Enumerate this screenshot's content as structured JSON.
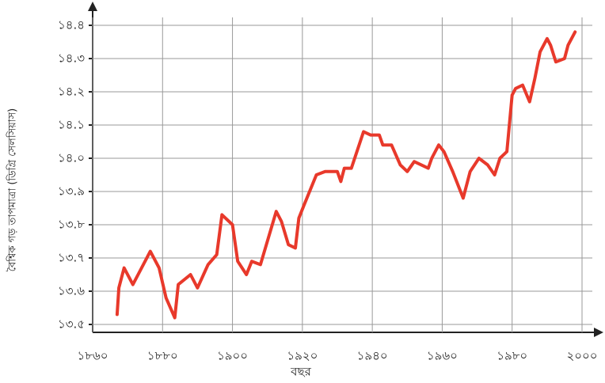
{
  "chart_data": {
    "type": "line",
    "xlabel": "বছর",
    "ylabel": "বৈশ্বিক গড় তাপমাত্রা (ডিগ্রি সেলসিয়াস)",
    "x": [
      1867,
      1867.5,
      1869,
      1871.5,
      1873,
      1876.5,
      1879,
      1881,
      1883.5,
      1884.5,
      1888,
      1890,
      1893,
      1895.5,
      1897,
      1900,
      1901.5,
      1904,
      1905.5,
      1908,
      1912.5,
      1914,
      1916,
      1918,
      1919,
      1920.5,
      1924,
      1926.5,
      1930,
      1931,
      1932,
      1934,
      1937.5,
      1939.5,
      1942,
      1943,
      1945.5,
      1948,
      1950,
      1952,
      1956,
      1957,
      1959,
      1960.5,
      1963,
      1966,
      1968,
      1970.5,
      1973,
      1975,
      1976.5,
      1978.5,
      1980,
      1981,
      1983,
      1985,
      1986.5,
      1988,
      1990,
      1991,
      1992.5,
      1995,
      1996,
      1998
    ],
    "series": [
      {
        "name": "বৈশ্বিক গড় তাপমাত্রা",
        "color": "#e8392b",
        "values": [
          13.53,
          13.61,
          13.67,
          13.62,
          13.65,
          13.72,
          13.67,
          13.58,
          13.52,
          13.62,
          13.65,
          13.61,
          13.68,
          13.71,
          13.83,
          13.8,
          13.69,
          13.65,
          13.69,
          13.68,
          13.84,
          13.81,
          13.74,
          13.73,
          13.82,
          13.86,
          13.95,
          13.96,
          13.96,
          13.93,
          13.97,
          13.97,
          14.08,
          14.07,
          14.07,
          14.04,
          14.04,
          13.98,
          13.96,
          13.99,
          13.97,
          14.0,
          14.04,
          14.02,
          13.96,
          13.88,
          13.96,
          14.0,
          13.98,
          13.95,
          14.0,
          14.02,
          14.19,
          14.21,
          14.22,
          14.17,
          14.24,
          14.32,
          14.36,
          14.34,
          14.29,
          14.3,
          14.34,
          14.38
        ]
      }
    ],
    "xlim": [
      1860,
      2000
    ],
    "ylim": [
      13.5,
      14.4
    ],
    "xticks": [
      {
        "value": 1860,
        "label": "১৮৬০"
      },
      {
        "value": 1880,
        "label": "১৮৮০"
      },
      {
        "value": 1900,
        "label": "১৯০০"
      },
      {
        "value": 1920,
        "label": "১৯২০"
      },
      {
        "value": 1940,
        "label": "১৯৪০"
      },
      {
        "value": 1960,
        "label": "১৯৬০"
      },
      {
        "value": 1980,
        "label": "১৯৮০"
      },
      {
        "value": 2000,
        "label": "২০০০"
      }
    ],
    "yticks": [
      {
        "value": 13.5,
        "label": "১৩.৫"
      },
      {
        "value": 13.6,
        "label": "১৩.৬"
      },
      {
        "value": 13.7,
        "label": "১৩.৭"
      },
      {
        "value": 13.8,
        "label": "১৩.৮"
      },
      {
        "value": 13.9,
        "label": "১৩.৯"
      },
      {
        "value": 14.0,
        "label": "১৪.০"
      },
      {
        "value": 14.1,
        "label": "১৪.১"
      },
      {
        "value": 14.2,
        "label": "১৪.২"
      },
      {
        "value": 14.3,
        "label": "১৪.৩"
      },
      {
        "value": 14.4,
        "label": "১৪.৪"
      }
    ],
    "grid": true
  }
}
